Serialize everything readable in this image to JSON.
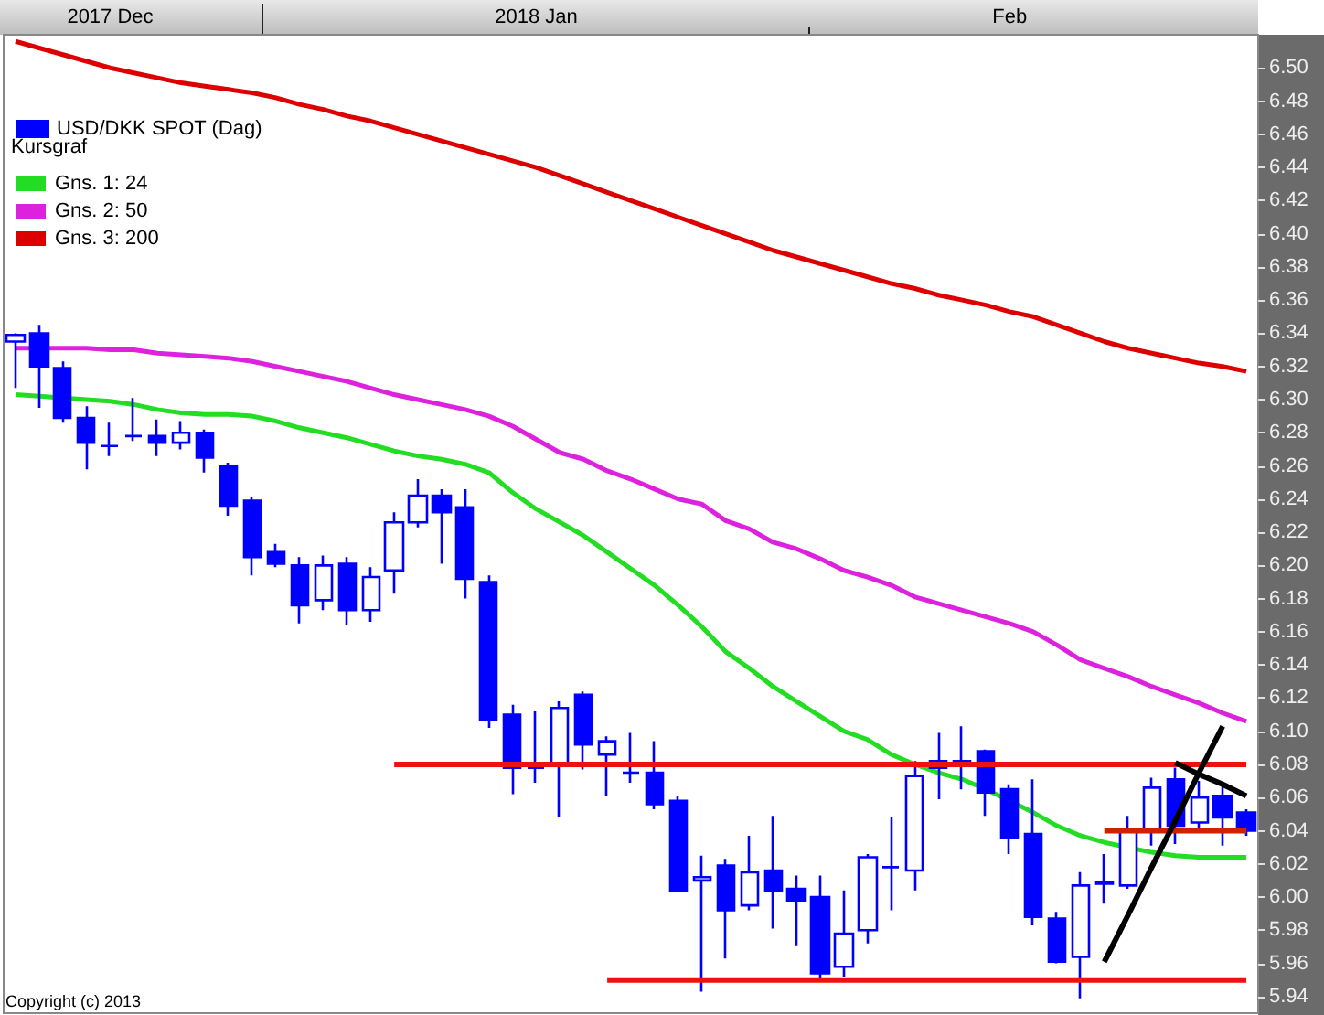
{
  "chart_data": {
    "type": "candlestick",
    "legend_title": "Kursgraf",
    "legend": "top left",
    "grid": false,
    "annotations": [
      "Copyright (c) 2013"
    ],
    "categories": [
      null,
      null,
      null,
      null,
      "2017 Dec",
      null,
      null,
      null,
      null,
      null,
      null,
      null,
      null,
      null,
      null,
      null,
      null,
      null,
      null,
      null,
      null,
      null,
      "2018 Jan",
      null,
      null,
      null,
      null,
      null,
      null,
      null,
      null,
      null,
      null,
      null,
      null,
      null,
      null,
      null,
      null,
      null,
      null,
      null,
      "Feb",
      null,
      null,
      null,
      null,
      null,
      null,
      null,
      null,
      null,
      null
    ],
    "ylim": [
      5.93,
      6.52
    ],
    "yticks": [
      {
        "value": 5.94,
        "label": "5.94"
      },
      {
        "value": 5.96,
        "label": "5.96"
      },
      {
        "value": 5.98,
        "label": "5.98"
      },
      {
        "value": 6.0,
        "label": "6.00"
      },
      {
        "value": 6.02,
        "label": "6.02"
      },
      {
        "value": 6.04,
        "label": "6.04"
      },
      {
        "value": 6.06,
        "label": "6.06"
      },
      {
        "value": 6.08,
        "label": "6.08"
      },
      {
        "value": 6.1,
        "label": "6.10"
      },
      {
        "value": 6.12,
        "label": "6.12"
      },
      {
        "value": 6.14,
        "label": "6.14"
      },
      {
        "value": 6.16,
        "label": "6.16"
      },
      {
        "value": 6.18,
        "label": "6.18"
      },
      {
        "value": 6.2,
        "label": "6.20"
      },
      {
        "value": 6.22,
        "label": "6.22"
      },
      {
        "value": 6.24,
        "label": "6.24"
      },
      {
        "value": 6.26,
        "label": "6.26"
      },
      {
        "value": 6.28,
        "label": "6.28"
      },
      {
        "value": 6.3,
        "label": "6.30"
      },
      {
        "value": 6.32,
        "label": "6.32"
      },
      {
        "value": 6.34,
        "label": "6.34"
      },
      {
        "value": 6.36,
        "label": "6.36"
      },
      {
        "value": 6.38,
        "label": "6.38"
      },
      {
        "value": 6.4,
        "label": "6.40"
      },
      {
        "value": 6.42,
        "label": "6.42"
      },
      {
        "value": 6.44,
        "label": "6.44"
      },
      {
        "value": 6.46,
        "label": "6.46"
      },
      {
        "value": 6.48,
        "label": "6.48"
      },
      {
        "value": 6.5,
        "label": "6.50"
      }
    ],
    "series": [
      {
        "name": "USD/DKK SPOT (Dag)",
        "color": "#0000ff",
        "ohlc": [
          [
            6.335,
            6.34,
            6.307,
            6.339
          ],
          [
            6.34,
            6.345,
            6.295,
            6.32
          ],
          [
            6.319,
            6.323,
            6.286,
            6.289
          ],
          [
            6.289,
            6.296,
            6.258,
            6.274
          ],
          [
            6.272,
            6.286,
            6.266,
            6.272
          ],
          [
            6.278,
            6.301,
            6.275,
            6.278
          ],
          [
            6.278,
            6.288,
            6.266,
            6.274
          ],
          [
            6.274,
            6.287,
            6.27,
            6.28
          ],
          [
            6.28,
            6.282,
            6.256,
            6.265
          ],
          [
            6.26,
            6.262,
            6.23,
            6.236
          ],
          [
            6.239,
            6.241,
            6.194,
            6.205
          ],
          [
            6.208,
            6.213,
            6.199,
            6.201
          ],
          [
            6.2,
            6.205,
            6.165,
            6.176
          ],
          [
            6.179,
            6.206,
            6.173,
            6.2
          ],
          [
            6.201,
            6.205,
            6.164,
            6.173
          ],
          [
            6.173,
            6.199,
            6.166,
            6.193
          ],
          [
            6.197,
            6.232,
            6.183,
            6.226
          ],
          [
            6.226,
            6.252,
            6.223,
            6.242
          ],
          [
            6.242,
            6.246,
            6.201,
            6.232
          ],
          [
            6.235,
            6.246,
            6.18,
            6.192
          ],
          [
            6.19,
            6.194,
            6.102,
            6.107
          ],
          [
            6.11,
            6.116,
            6.062,
            6.078
          ],
          [
            6.078,
            6.112,
            6.069,
            6.078
          ],
          [
            6.08,
            6.118,
            6.048,
            6.114
          ],
          [
            6.122,
            6.124,
            6.077,
            6.092
          ],
          [
            6.086,
            6.097,
            6.061,
            6.094
          ],
          [
            6.075,
            6.099,
            6.069,
            6.075
          ],
          [
            6.075,
            6.094,
            6.053,
            6.056
          ],
          [
            6.058,
            6.061,
            6.003,
            6.004
          ],
          [
            6.01,
            6.025,
            5.943,
            6.012
          ],
          [
            6.019,
            6.023,
            5.963,
            5.992
          ],
          [
            5.995,
            6.037,
            5.992,
            6.015
          ],
          [
            6.016,
            6.049,
            5.981,
            6.004
          ],
          [
            6.005,
            6.013,
            5.971,
            5.998
          ],
          [
            6.0,
            6.013,
            5.95,
            5.954
          ],
          [
            5.958,
            6.004,
            5.952,
            5.978
          ],
          [
            5.98,
            6.026,
            5.972,
            6.024
          ],
          [
            6.018,
            6.048,
            5.992,
            6.018
          ],
          [
            6.016,
            6.082,
            6.004,
            6.073
          ],
          [
            6.078,
            6.099,
            6.059,
            6.082
          ],
          [
            6.082,
            6.103,
            6.065,
            6.08
          ],
          [
            6.088,
            6.089,
            6.049,
            6.063
          ],
          [
            6.065,
            6.068,
            6.026,
            6.036
          ],
          [
            6.038,
            6.071,
            5.983,
            5.988
          ],
          [
            5.987,
            5.991,
            5.96,
            5.961
          ],
          [
            5.964,
            6.015,
            5.939,
            6.007
          ],
          [
            6.008,
            6.026,
            5.996,
            6.009
          ],
          [
            6.007,
            6.049,
            6.005,
            6.041
          ],
          [
            6.04,
            6.072,
            6.031,
            6.066
          ],
          [
            6.071,
            6.078,
            6.032,
            6.043
          ],
          [
            6.045,
            6.07,
            6.042,
            6.06
          ],
          [
            6.061,
            6.067,
            6.031,
            6.048
          ],
          [
            6.051,
            6.053,
            6.037,
            6.04
          ]
        ]
      },
      {
        "type": "line",
        "name": "Gns. 1: 24",
        "color": "#22dd22",
        "values": [
          6.303,
          6.302,
          null,
          6.3,
          6.299,
          6.297,
          6.294,
          6.292,
          6.291,
          6.291,
          6.29,
          6.287,
          6.283,
          6.28,
          6.277,
          6.273,
          6.269,
          6.266,
          6.264,
          6.261,
          6.256,
          6.244,
          6.234,
          6.226,
          6.218,
          6.208,
          6.198,
          6.188,
          6.176,
          6.163,
          6.148,
          6.138,
          6.127,
          6.118,
          6.109,
          6.1,
          6.095,
          6.086,
          6.08,
          6.075,
          6.071,
          6.065,
          null,
          6.051,
          6.043,
          6.037,
          6.033,
          null,
          6.027,
          6.025,
          6.024,
          6.024,
          6.024
        ]
      },
      {
        "type": "line",
        "name": "Gns. 2: 50",
        "color": "#dd22dd",
        "values": [
          6.331,
          null,
          6.331,
          6.331,
          6.33,
          6.33,
          6.328,
          6.327,
          6.326,
          6.325,
          6.323,
          6.32,
          6.317,
          6.314,
          6.311,
          6.307,
          6.303,
          6.3,
          6.297,
          6.294,
          6.29,
          6.284,
          6.276,
          6.268,
          6.264,
          6.257,
          6.252,
          6.246,
          6.24,
          6.237,
          6.227,
          6.222,
          6.214,
          6.21,
          6.204,
          6.197,
          6.193,
          6.188,
          6.181,
          6.177,
          6.173,
          6.169,
          6.165,
          6.16,
          6.152,
          6.143,
          6.138,
          6.133,
          6.127,
          6.122,
          6.117,
          6.111,
          6.106
        ]
      },
      {
        "type": "line",
        "name": "Gns. 3: 200",
        "color": "#dd0000",
        "values": [
          6.516,
          6.512,
          6.508,
          6.504,
          6.5,
          6.497,
          6.494,
          6.491,
          6.489,
          6.487,
          6.485,
          6.482,
          6.478,
          6.475,
          6.471,
          6.468,
          6.464,
          6.46,
          6.456,
          6.452,
          6.448,
          6.444,
          6.44,
          6.435,
          6.43,
          6.425,
          6.42,
          6.415,
          6.41,
          6.405,
          6.4,
          6.395,
          6.39,
          6.386,
          6.382,
          6.378,
          6.374,
          6.37,
          6.367,
          6.363,
          6.36,
          6.357,
          6.353,
          6.35,
          6.345,
          6.34,
          6.335,
          6.331,
          6.328,
          6.325,
          6.322,
          6.32,
          6.317
        ]
      },
      {
        "type": "line",
        "color": "#ee1111",
        "values": [
          null,
          null,
          null,
          null,
          null,
          null,
          null,
          null,
          null,
          null,
          null,
          null,
          null,
          null,
          null,
          null,
          6.08,
          6.08,
          6.08,
          6.08,
          6.08,
          6.08,
          6.08,
          6.08,
          6.08,
          6.08,
          6.08,
          6.08,
          6.08,
          6.08,
          6.08,
          6.08,
          6.08,
          6.08,
          6.08,
          6.08,
          6.08,
          6.08,
          6.08,
          6.08,
          6.08,
          6.08,
          6.08,
          6.08,
          6.08,
          6.08,
          6.08,
          6.08,
          6.08,
          6.08,
          6.08,
          6.08,
          6.08
        ]
      },
      {
        "type": "line",
        "color": "#ee1111",
        "values": [
          null,
          null,
          null,
          null,
          null,
          null,
          null,
          null,
          null,
          null,
          null,
          null,
          null,
          null,
          null,
          null,
          null,
          null,
          null,
          null,
          null,
          null,
          null,
          null,
          null,
          5.95,
          5.95,
          5.95,
          5.95,
          5.95,
          5.95,
          5.95,
          5.95,
          5.95,
          5.95,
          5.95,
          5.95,
          5.95,
          5.95,
          5.95,
          5.95,
          5.95,
          5.95,
          5.95,
          5.95,
          5.95,
          5.95,
          5.95,
          5.95,
          5.95,
          5.95,
          5.95,
          5.95
        ]
      },
      {
        "type": "line",
        "color": "#cc2200",
        "values": [
          null,
          null,
          null,
          null,
          null,
          null,
          null,
          null,
          null,
          null,
          null,
          null,
          null,
          null,
          null,
          null,
          null,
          null,
          null,
          null,
          null,
          null,
          null,
          null,
          null,
          null,
          null,
          null,
          null,
          null,
          null,
          null,
          null,
          null,
          null,
          null,
          null,
          null,
          null,
          null,
          null,
          null,
          null,
          null,
          null,
          null,
          6.04,
          6.04,
          6.04,
          6.04,
          6.04,
          6.04,
          6.04
        ]
      },
      {
        "type": "line",
        "color": "#000000",
        "values": [
          null,
          null,
          null,
          null,
          null,
          null,
          null,
          null,
          null,
          null,
          null,
          null,
          null,
          null,
          null,
          null,
          null,
          null,
          null,
          null,
          null,
          null,
          null,
          null,
          null,
          null,
          null,
          null,
          null,
          null,
          null,
          null,
          null,
          null,
          null,
          null,
          null,
          null,
          null,
          null,
          null,
          null,
          null,
          null,
          null,
          null,
          5.961,
          5.989,
          6.018,
          6.046,
          6.075,
          6.103,
          null
        ]
      },
      {
        "type": "line",
        "color": "#000000",
        "values": [
          null,
          null,
          null,
          null,
          null,
          null,
          null,
          null,
          null,
          null,
          null,
          null,
          null,
          null,
          null,
          null,
          null,
          null,
          null,
          null,
          null,
          null,
          null,
          null,
          null,
          null,
          null,
          null,
          null,
          null,
          null,
          null,
          null,
          null,
          null,
          null,
          null,
          null,
          null,
          null,
          null,
          null,
          null,
          null,
          null,
          null,
          null,
          null,
          null,
          6.081,
          6.074,
          6.068,
          6.061
        ]
      }
    ]
  }
}
